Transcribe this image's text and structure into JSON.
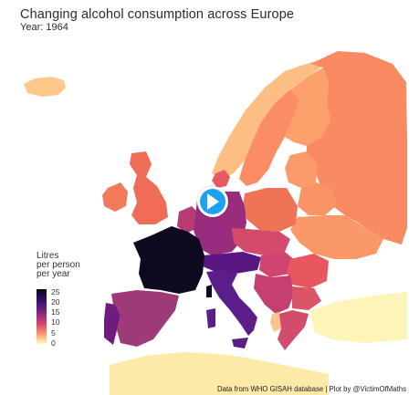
{
  "title": "Changing alcohol consumption across Europe",
  "subtitle": "Year: 1964",
  "legend": {
    "title_lines": [
      "Litres",
      "per person",
      "per year"
    ],
    "ticks": [
      "25",
      "20",
      "15",
      "10",
      "5",
      "0"
    ]
  },
  "caption": "Data from WHO GISAH database | Plot by @VictimOfMaths",
  "colors": {
    "scale_max": "#0b0718",
    "scale_mid_high": "#3b0f6f",
    "scale_mid": "#8c2981",
    "scale_mid_low": "#de4968",
    "scale_low": "#fe9f6d",
    "scale_min": "#fcfdbf",
    "play_button": "#1da1f2"
  },
  "icons": {
    "play": "play-icon"
  }
}
